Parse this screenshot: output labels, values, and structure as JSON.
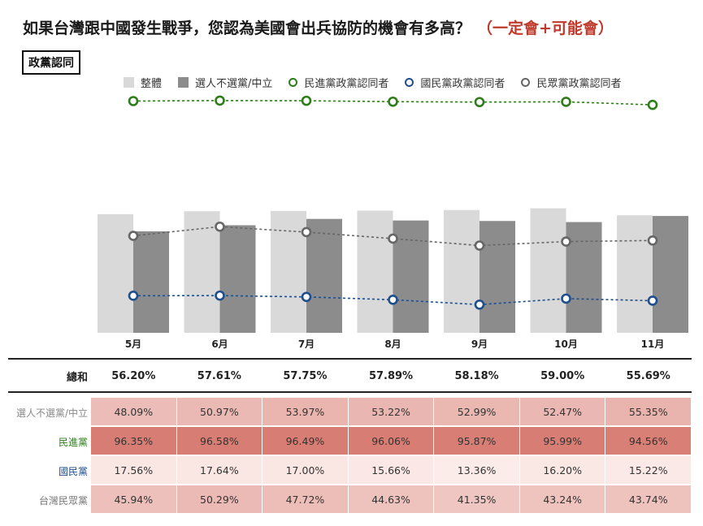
{
  "title": "如果台灣跟中國發生戰爭，您認為美國會出兵協防的機會有多高？",
  "subtitle": "（一定會+可能會）",
  "tag": "政黨認同",
  "legend": {
    "overall": "整體",
    "neutral": "選人不選黨/中立",
    "dpp": "民進黨政黨認同者",
    "kmt": "國民黨政黨認同者",
    "tpp": "民眾黨政黨認同者"
  },
  "colors": {
    "overall": "#d9d9d9",
    "neutral": "#8c8c8c",
    "dpp": "#2e7d1a",
    "kmt": "#1f4e8c",
    "tpp": "#666666",
    "subtitle": "#c0392b"
  },
  "chart_data": {
    "type": "bar",
    "categories": [
      "5月",
      "6月",
      "7月",
      "8月",
      "9月",
      "10月",
      "11月"
    ],
    "series": [
      {
        "name": "整體",
        "type": "bar",
        "values": [
          56.2,
          57.61,
          57.75,
          57.89,
          58.18,
          59.0,
          55.69
        ]
      },
      {
        "name": "選人不選黨/中立",
        "type": "bar",
        "values": [
          48.09,
          50.97,
          53.97,
          53.22,
          52.99,
          52.47,
          55.35
        ]
      },
      {
        "name": "民進黨政黨認同者",
        "type": "line",
        "values": [
          96.35,
          96.58,
          96.49,
          96.06,
          95.87,
          95.99,
          94.56
        ]
      },
      {
        "name": "國民黨政黨認同者",
        "type": "line",
        "values": [
          17.56,
          17.64,
          17.0,
          15.66,
          13.36,
          16.2,
          15.22
        ]
      },
      {
        "name": "民眾黨政黨認同者",
        "type": "line",
        "values": [
          45.94,
          50.29,
          47.72,
          44.63,
          41.35,
          43.24,
          43.74
        ]
      }
    ],
    "ylim": [
      0,
      100
    ],
    "grid": false,
    "legend_position": "top"
  },
  "table": {
    "sum_label": "總和",
    "sum_values": [
      "56.20%",
      "57.61%",
      "57.75%",
      "57.89%",
      "58.18%",
      "59.00%",
      "55.69%"
    ],
    "rows": [
      {
        "label": "選人不選黨/中立",
        "label_color": "#888888",
        "values": [
          "48.09%",
          "50.97%",
          "53.97%",
          "53.22%",
          "52.99%",
          "52.47%",
          "55.35%"
        ],
        "raw": [
          48.09,
          50.97,
          53.97,
          53.22,
          52.99,
          52.47,
          55.35
        ]
      },
      {
        "label": "民進黨",
        "label_color": "#2e7d1a",
        "values": [
          "96.35%",
          "96.58%",
          "96.49%",
          "96.06%",
          "95.87%",
          "95.99%",
          "94.56%"
        ],
        "raw": [
          96.35,
          96.58,
          96.49,
          96.06,
          95.87,
          95.99,
          94.56
        ]
      },
      {
        "label": "國民黨",
        "label_color": "#1f4e8c",
        "values": [
          "17.56%",
          "17.64%",
          "17.00%",
          "15.66%",
          "13.36%",
          "16.20%",
          "15.22%"
        ],
        "raw": [
          17.56,
          17.64,
          17.0,
          15.66,
          13.36,
          16.2,
          15.22
        ]
      },
      {
        "label": "台灣民眾黨",
        "label_color": "#777777",
        "values": [
          "45.94%",
          "50.29%",
          "47.72%",
          "44.63%",
          "41.35%",
          "43.24%",
          "43.74%"
        ],
        "raw": [
          45.94,
          50.29,
          47.72,
          44.63,
          41.35,
          43.24,
          43.74
        ]
      }
    ]
  }
}
